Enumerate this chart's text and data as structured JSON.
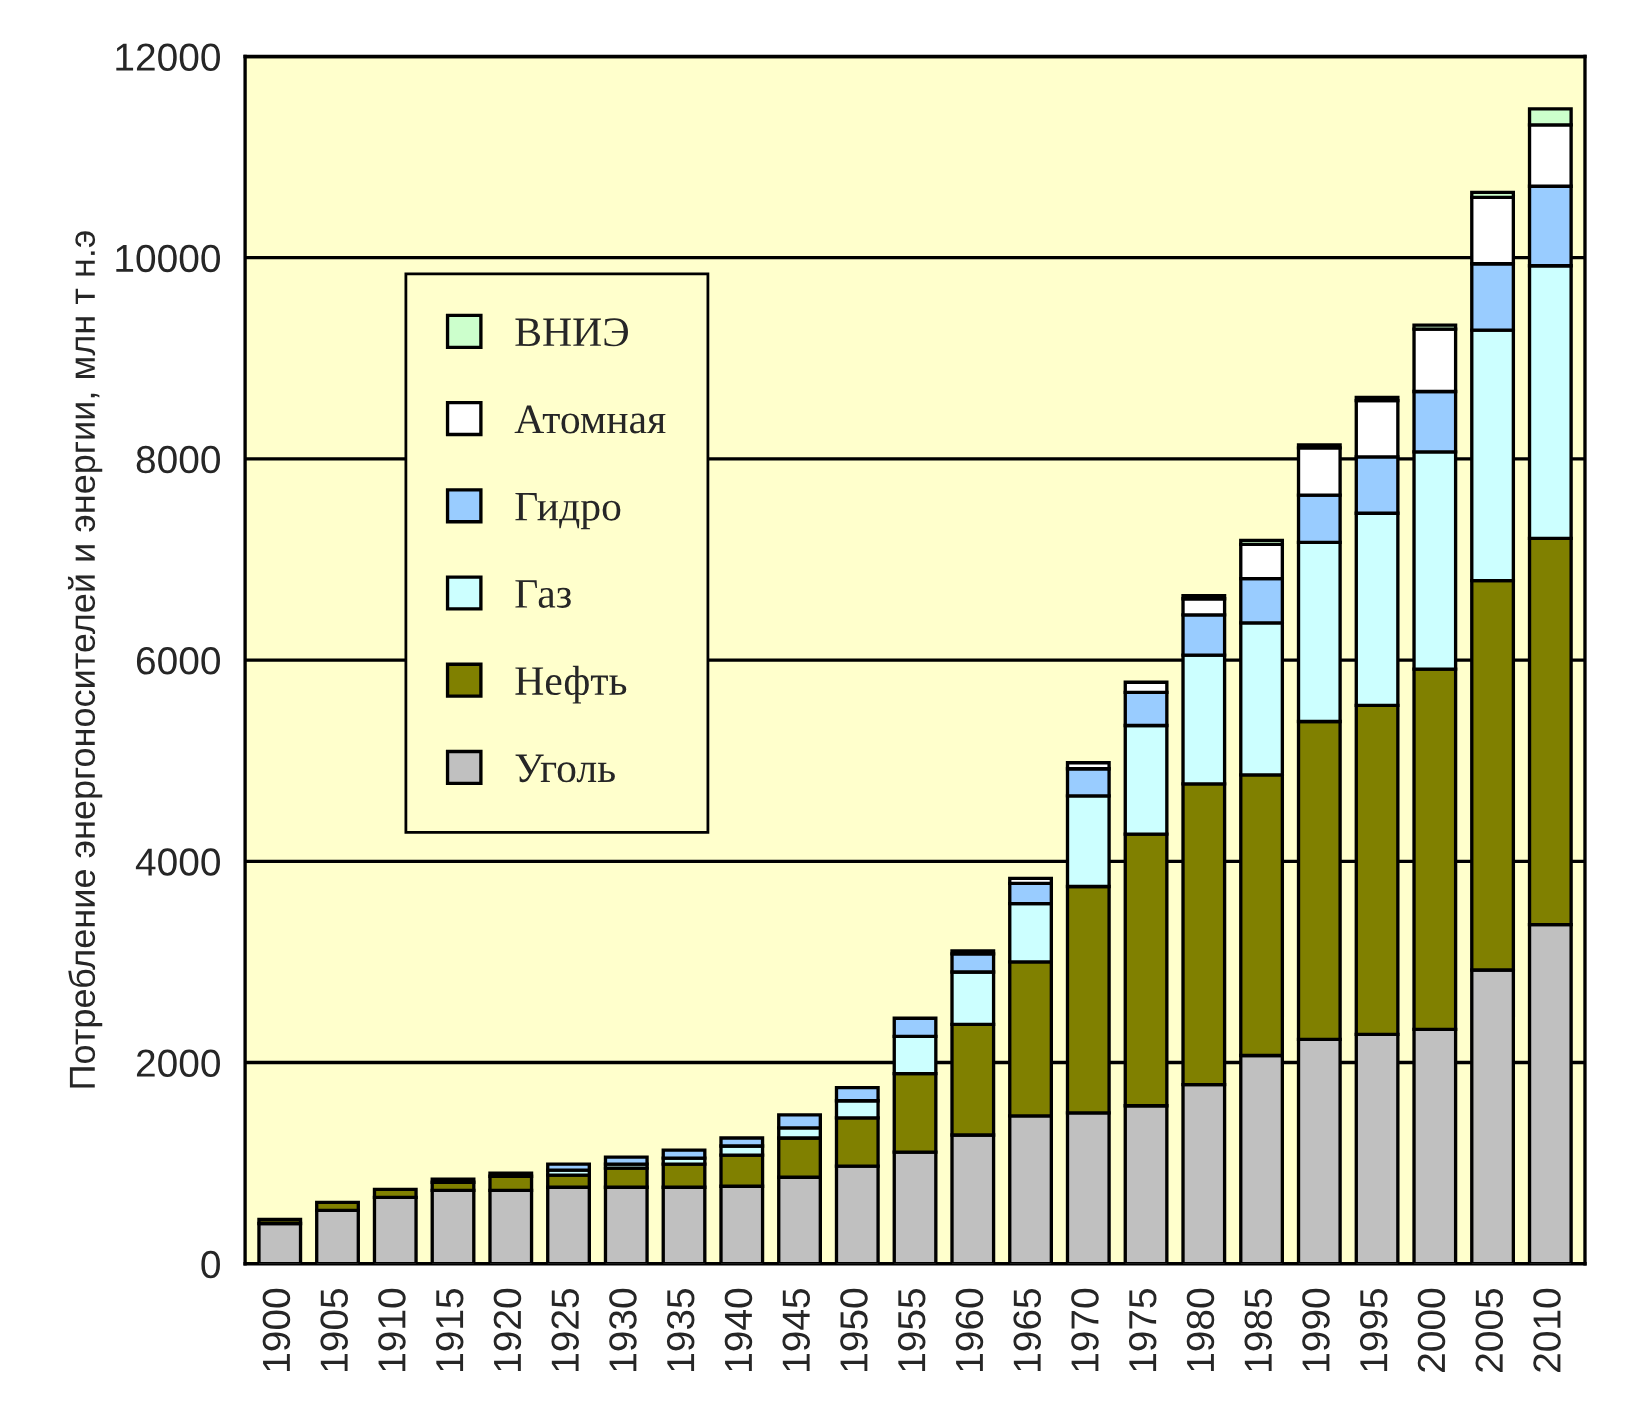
{
  "chart_data": {
    "type": "bar",
    "stacked": true,
    "ylabel": "Потребление энергоносителей и энергии, млн т н.э",
    "categories": [
      "1900",
      "1905",
      "1910",
      "1915",
      "1920",
      "1925",
      "1930",
      "1935",
      "1940",
      "1945",
      "1950",
      "1955",
      "1960",
      "1965",
      "1970",
      "1975",
      "1980",
      "1985",
      "1990",
      "1995",
      "2000",
      "2005",
      "2010"
    ],
    "series": [
      {
        "name": "Уголь",
        "color": "#c0c0c0",
        "values": [
          400,
          530,
          660,
          730,
          730,
          760,
          760,
          760,
          770,
          860,
          970,
          1110,
          1280,
          1470,
          1500,
          1570,
          1780,
          2070,
          2230,
          2280,
          2330,
          2920,
          3370
        ]
      },
      {
        "name": "Нефть",
        "color": "#808000",
        "values": [
          40,
          80,
          80,
          80,
          140,
          120,
          190,
          230,
          310,
          390,
          480,
          780,
          1100,
          1530,
          2250,
          2700,
          2990,
          2790,
          3160,
          3270,
          3580,
          3870,
          3840
        ]
      },
      {
        "name": "Газ",
        "color": "#ccffff",
        "values": [
          null,
          null,
          null,
          null,
          null,
          50,
          40,
          60,
          90,
          100,
          170,
          370,
          520,
          580,
          900,
          1080,
          1280,
          1510,
          1780,
          1910,
          2160,
          2490,
          2710
        ]
      },
      {
        "name": "Гидро",
        "color": "#99ccff",
        "values": [
          null,
          null,
          null,
          30,
          30,
          60,
          70,
          80,
          80,
          130,
          130,
          180,
          180,
          200,
          270,
          330,
          400,
          440,
          470,
          560,
          600,
          660,
          790
        ]
      },
      {
        "name": "Атомная",
        "color": "#ffffff",
        "values": [
          null,
          null,
          null,
          null,
          null,
          null,
          null,
          null,
          null,
          null,
          null,
          null,
          30,
          50,
          60,
          100,
          160,
          340,
          470,
          560,
          620,
          660,
          610
        ]
      },
      {
        "name": "ВНИЭ",
        "color": "#ccffcc",
        "values": [
          null,
          null,
          null,
          null,
          null,
          null,
          null,
          null,
          null,
          null,
          null,
          null,
          null,
          null,
          null,
          null,
          30,
          40,
          30,
          30,
          40,
          50,
          160
        ]
      }
    ],
    "ylim": [
      0,
      12000
    ],
    "yticks": [
      0,
      2000,
      4000,
      6000,
      8000,
      10000,
      12000
    ],
    "grid": "y",
    "legend": "top left"
  }
}
